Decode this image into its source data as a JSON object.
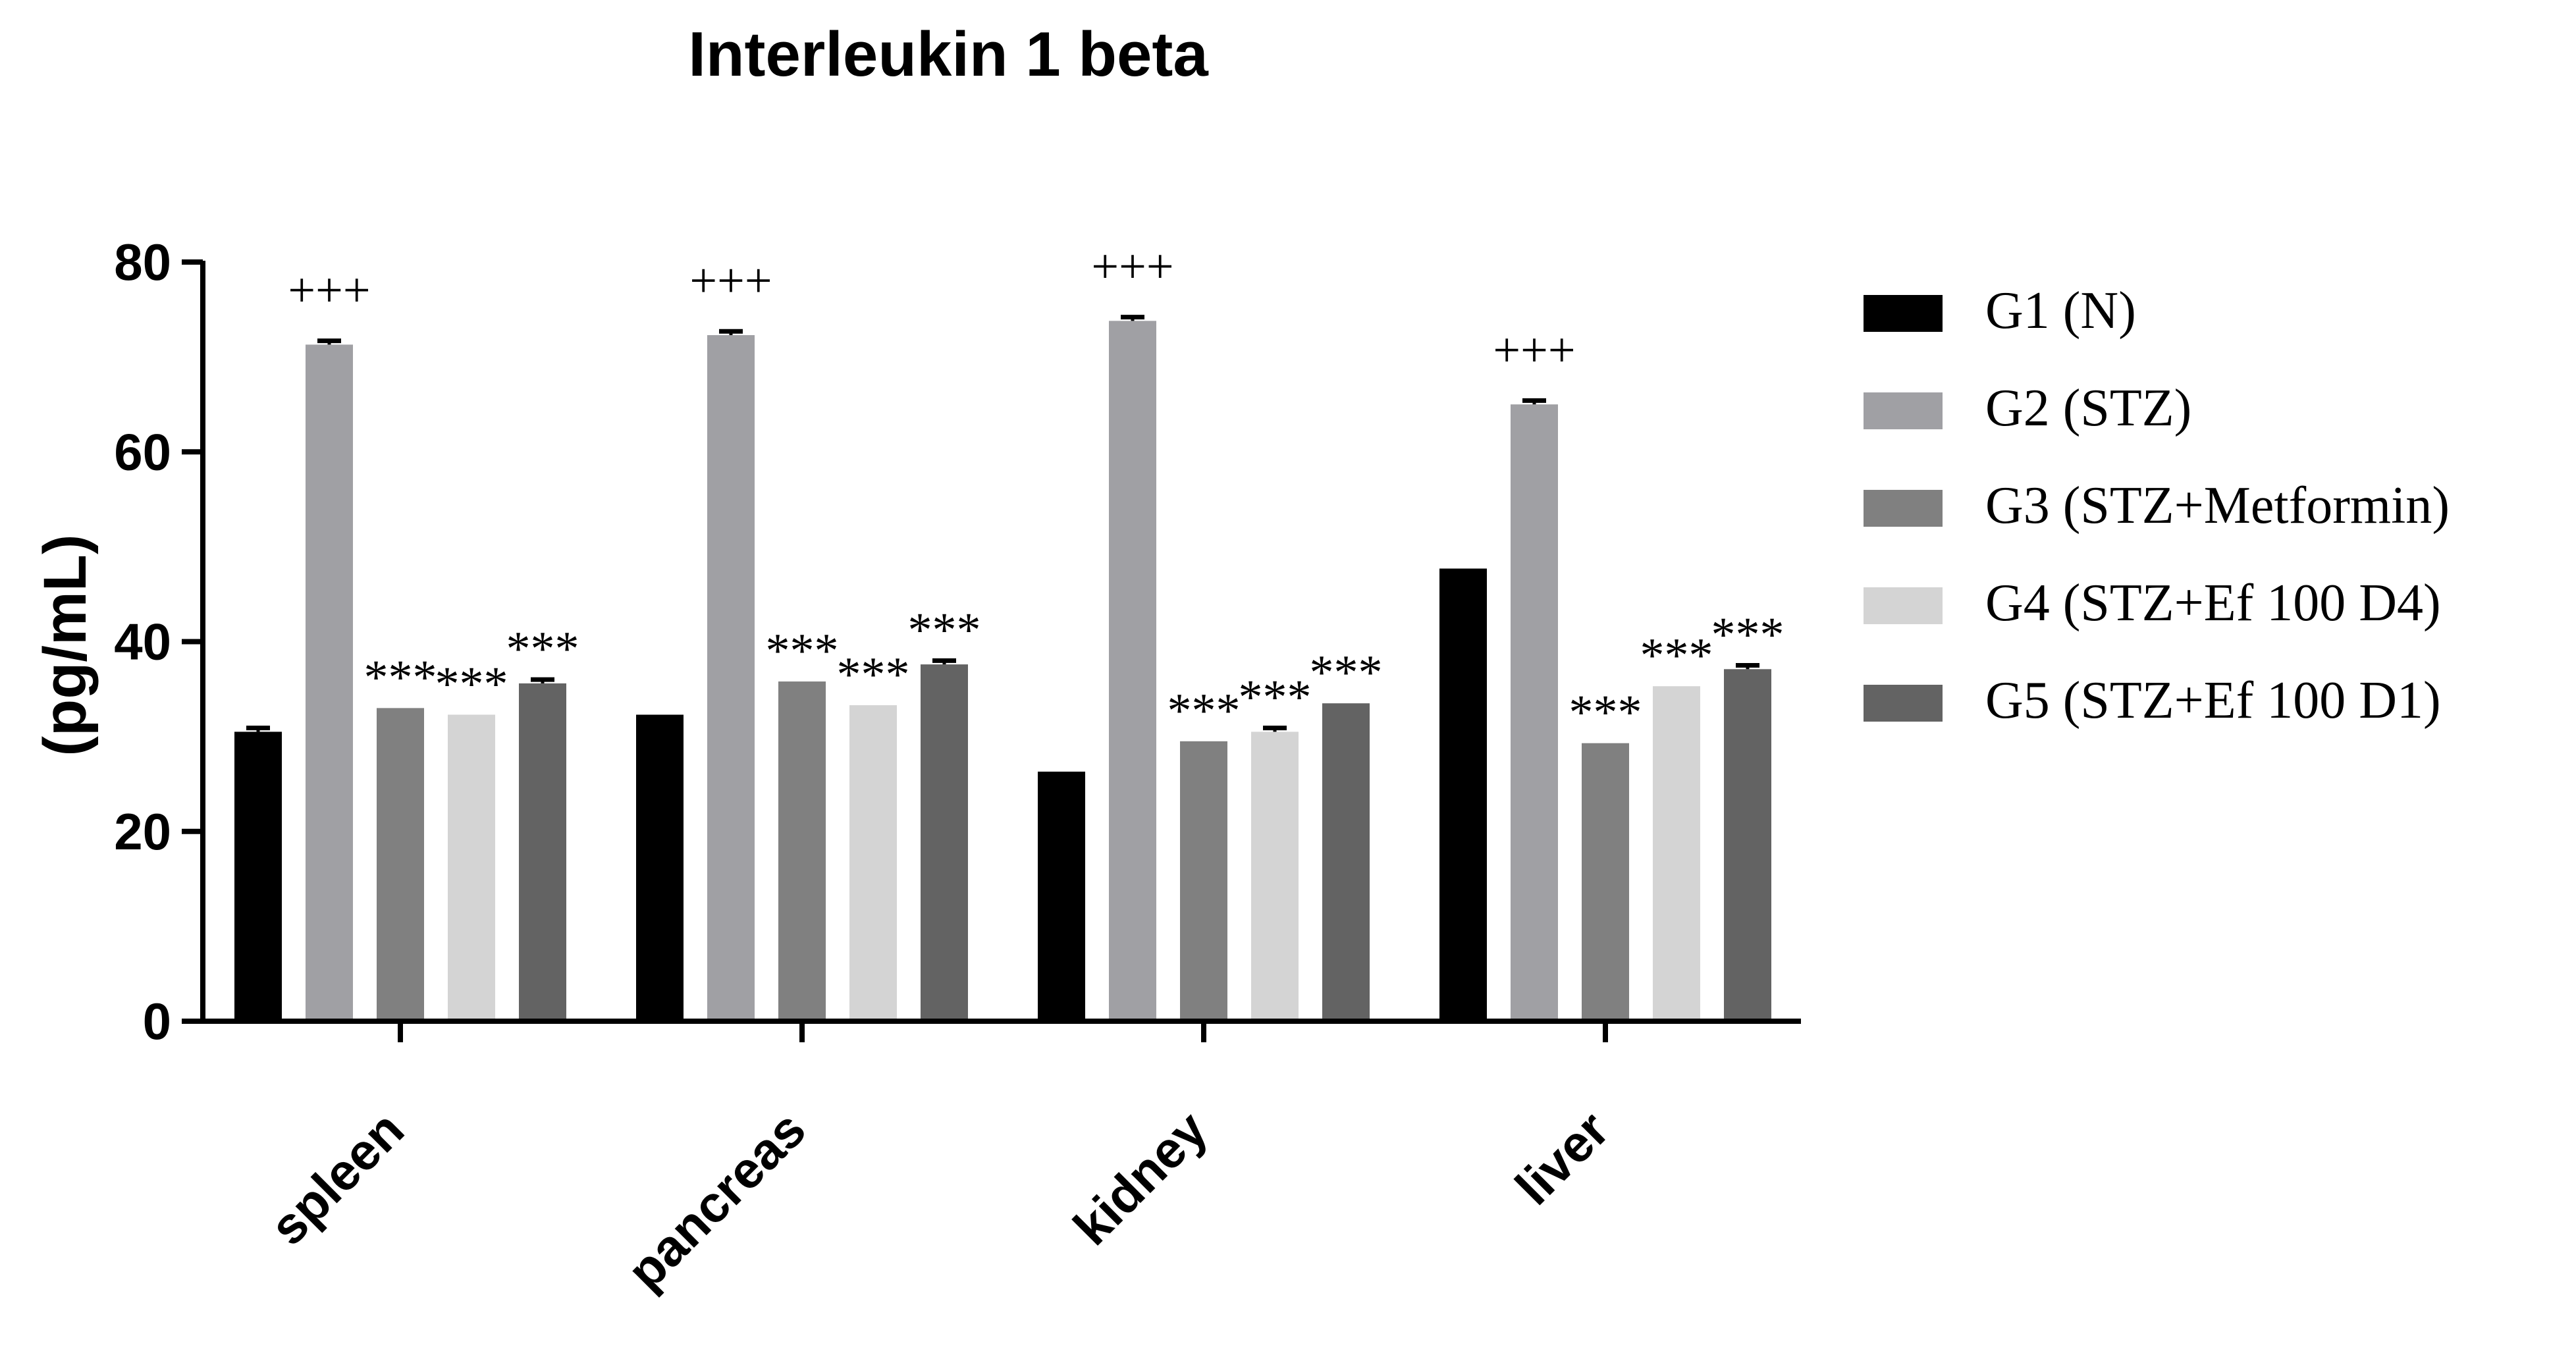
{
  "chart_data": {
    "type": "bar",
    "title": "Interleukin 1 beta",
    "xlabel": "",
    "ylabel": "(pg/mL)",
    "ylim": [
      0,
      80
    ],
    "yticks": [
      0,
      20,
      40,
      60,
      80
    ],
    "categories": [
      "spleen",
      "pancreas",
      "kidney",
      "liver"
    ],
    "legend_position": "right",
    "series": [
      {
        "name": "G1 (N)",
        "color": "#000000",
        "values": [
          30.5,
          32.3,
          26.3,
          47.7
        ],
        "errors": [
          0.4,
          0,
          0,
          0
        ],
        "annotations": [
          "",
          "",
          "",
          ""
        ]
      },
      {
        "name": "G2 (STZ)",
        "color": "#A0A0A4",
        "values": [
          71.3,
          72.3,
          73.8,
          65.0
        ],
        "errors": [
          0.4,
          0.4,
          0.4,
          0.4
        ],
        "annotations": [
          "+++",
          "+++",
          "+++",
          "+++"
        ]
      },
      {
        "name": "G3 (STZ+Metformin)",
        "color": "#808080",
        "values": [
          33.0,
          35.8,
          29.5,
          29.3
        ],
        "errors": [
          0,
          0,
          0,
          0
        ],
        "annotations": [
          "***",
          "***",
          "***",
          "***"
        ]
      },
      {
        "name": "G4 (STZ+Ef 100 D4)",
        "color": "#D4D4D4",
        "values": [
          32.3,
          33.3,
          30.5,
          35.3
        ],
        "errors": [
          0,
          0,
          0.4,
          0
        ],
        "annotations": [
          "***",
          "***",
          "***",
          "***"
        ]
      },
      {
        "name": "G5 (STZ+Ef 100 D1)",
        "color": "#636363",
        "values": [
          35.6,
          37.6,
          33.5,
          37.1
        ],
        "errors": [
          0.4,
          0.4,
          0,
          0.4
        ],
        "annotations": [
          "***",
          "***",
          "***",
          "***"
        ]
      }
    ]
  }
}
